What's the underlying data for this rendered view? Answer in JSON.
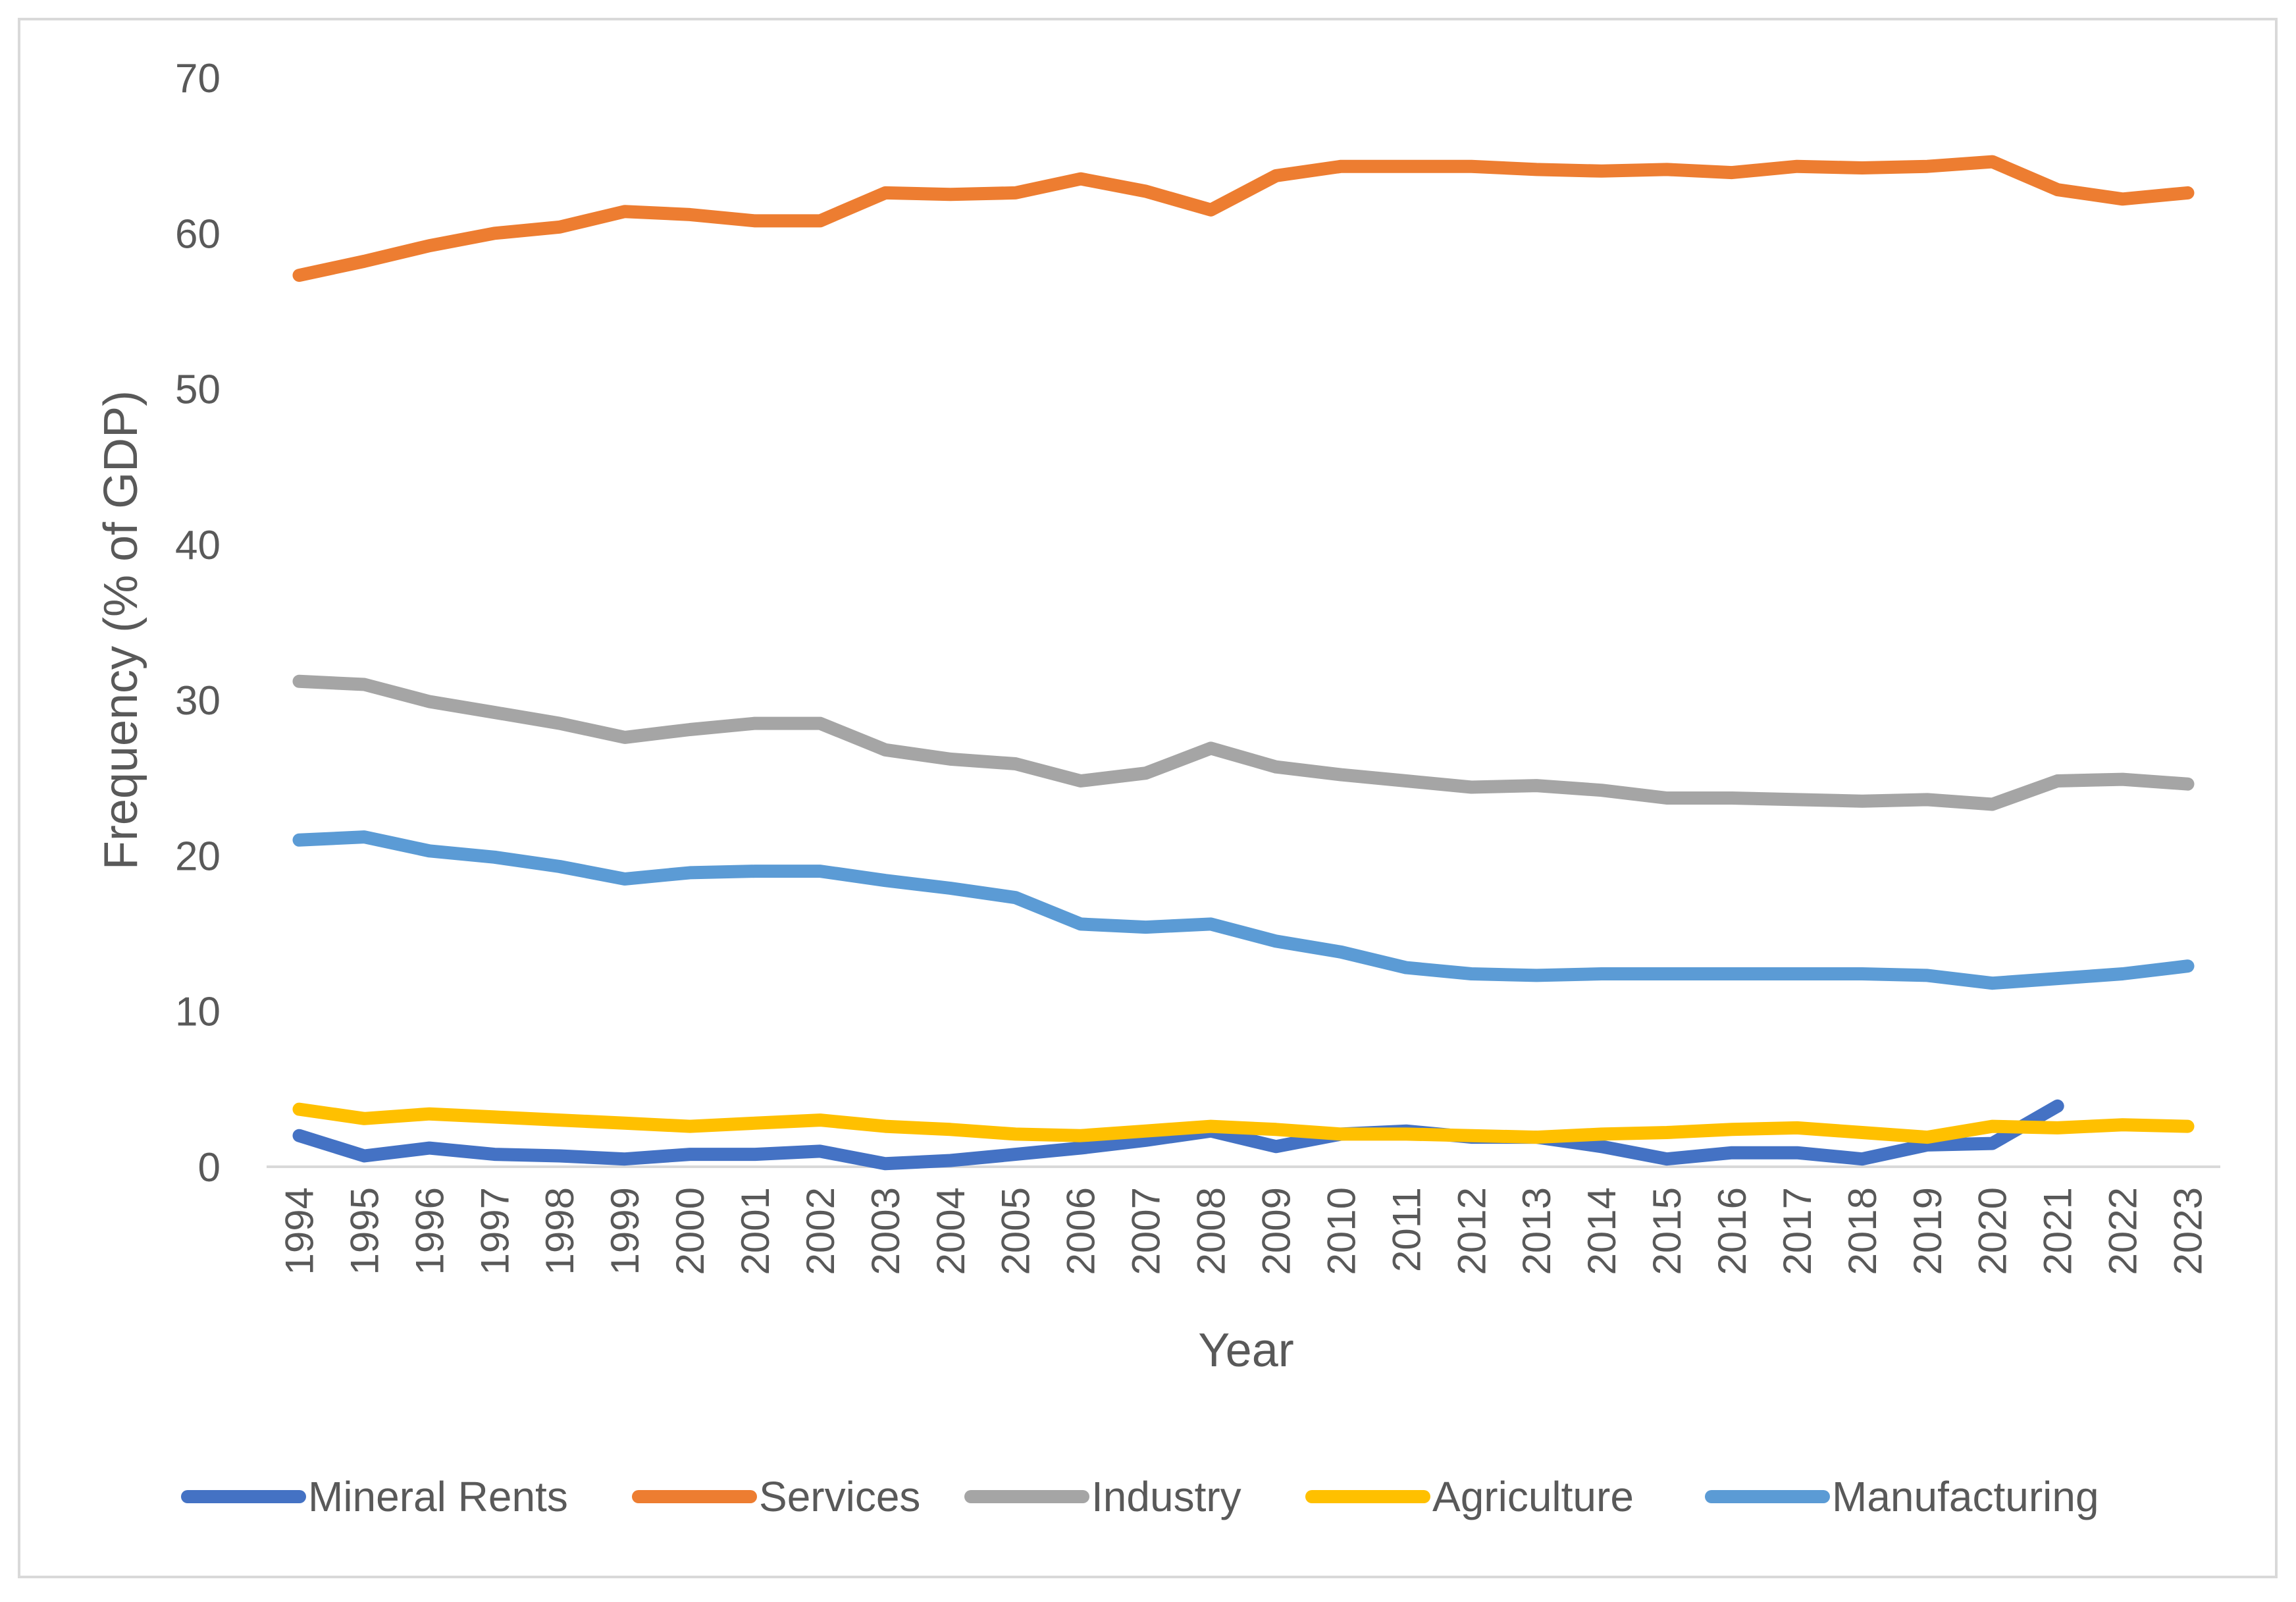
{
  "chart_data": {
    "type": "line",
    "title": "",
    "xlabel": "Year",
    "ylabel": "Frequency (% of GDP)",
    "ylim": [
      0,
      70
    ],
    "yticks": [
      0,
      10,
      20,
      30,
      40,
      50,
      60,
      70
    ],
    "grid": false,
    "legend_position": "bottom",
    "categories": [
      "1994",
      "1995",
      "1996",
      "1997",
      "1998",
      "1999",
      "2000",
      "2001",
      "2002",
      "2003",
      "2004",
      "2005",
      "2006",
      "2007",
      "2008",
      "2009",
      "2010",
      "2011",
      "2012",
      "2013",
      "2014",
      "2015",
      "2016",
      "2017",
      "2018",
      "2019",
      "2020",
      "2021",
      "2022",
      "2023"
    ],
    "series": [
      {
        "name": "Mineral Rents",
        "color": "#4472c4",
        "values": [
          2.0,
          0.7,
          1.2,
          0.8,
          0.7,
          0.5,
          0.8,
          0.8,
          1.0,
          0.2,
          0.4,
          0.8,
          1.2,
          1.7,
          2.3,
          1.3,
          2.1,
          2.3,
          1.9,
          1.9,
          1.3,
          0.5,
          0.9,
          0.9,
          0.5,
          1.4,
          1.5,
          3.9,
          null,
          null
        ]
      },
      {
        "name": "Services",
        "color": "#ed7d31",
        "values": [
          57.3,
          58.2,
          59.2,
          60.0,
          60.4,
          61.4,
          61.2,
          60.8,
          60.8,
          62.6,
          62.5,
          62.6,
          63.5,
          62.7,
          61.5,
          63.7,
          64.3,
          64.3,
          64.3,
          64.1,
          64.0,
          64.1,
          63.9,
          64.3,
          64.2,
          64.3,
          64.6,
          62.8,
          62.2,
          62.6
        ]
      },
      {
        "name": "Industry",
        "color": "#a5a5a5",
        "values": [
          31.2,
          31.0,
          29.9,
          29.2,
          28.5,
          27.6,
          28.1,
          28.5,
          28.5,
          26.8,
          26.2,
          25.9,
          24.8,
          25.3,
          26.9,
          25.7,
          25.2,
          24.8,
          24.4,
          24.5,
          24.2,
          23.7,
          23.7,
          23.6,
          23.5,
          23.6,
          23.3,
          24.8,
          24.9,
          24.6
        ]
      },
      {
        "name": "Agriculture",
        "color": "#ffc000",
        "values": [
          3.7,
          3.1,
          3.4,
          3.2,
          3.0,
          2.8,
          2.6,
          2.8,
          3.0,
          2.6,
          2.4,
          2.1,
          2.0,
          2.3,
          2.6,
          2.4,
          2.1,
          2.1,
          2.0,
          1.9,
          2.1,
          2.2,
          2.4,
          2.5,
          2.2,
          1.9,
          2.6,
          2.5,
          2.7,
          2.6
        ]
      },
      {
        "name": "Manufacturing",
        "color": "#5b9bd5",
        "values": [
          21.0,
          21.2,
          20.3,
          19.9,
          19.3,
          18.5,
          18.9,
          19.0,
          19.0,
          18.4,
          17.9,
          17.3,
          15.6,
          15.4,
          15.6,
          14.5,
          13.8,
          12.8,
          12.4,
          12.3,
          12.4,
          12.4,
          12.4,
          12.4,
          12.4,
          12.3,
          11.8,
          12.1,
          12.4,
          12.9
        ]
      }
    ]
  }
}
